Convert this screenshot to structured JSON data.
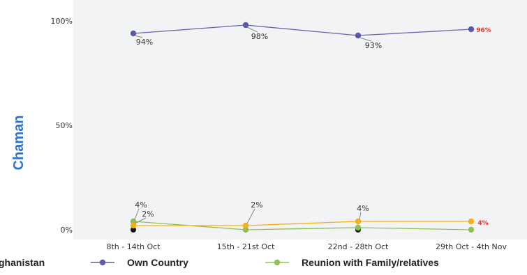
{
  "chart_data": {
    "type": "line",
    "side_title": "Chaman",
    "categories": [
      "8th - 14th Oct",
      "15th - 21st Oct",
      "22nd - 28th Oct",
      "29th Oct - 4th Nov"
    ],
    "y_ticks": [
      "0%",
      "50%",
      "100%"
    ],
    "ylim": [
      0,
      100
    ],
    "grid": false,
    "series": [
      {
        "name": "Own Country",
        "color": "#7060b0",
        "marker": "#5a5aa8",
        "values": [
          94,
          98,
          93,
          96
        ],
        "labels": [
          "94%",
          "98%",
          "93%",
          "96%"
        ]
      },
      {
        "name": "Reunion with Family/relatives",
        "color": "#8cc152",
        "marker": "#8cc152",
        "values": [
          4,
          0,
          1,
          0
        ],
        "labels": [
          "4%",
          "",
          "",
          ""
        ]
      },
      {
        "name": "",
        "color": "#f5b014",
        "marker": "#f5b014",
        "values": [
          2,
          2,
          4,
          4
        ],
        "labels": [
          "2%",
          "2%",
          "4%",
          "4%"
        ]
      },
      {
        "name": "",
        "color": "#111111",
        "marker": "#111111",
        "values": [
          0,
          null,
          0,
          null
        ],
        "labels": [
          "",
          "",
          "",
          ""
        ]
      }
    ],
    "legend": [
      "ghanistan",
      "Own Country",
      "Reunion with Family/relatives"
    ],
    "colors": {
      "title": "#2e75c7",
      "highlight": "#e8322a",
      "plot_bg": "#f2f3f5"
    }
  }
}
